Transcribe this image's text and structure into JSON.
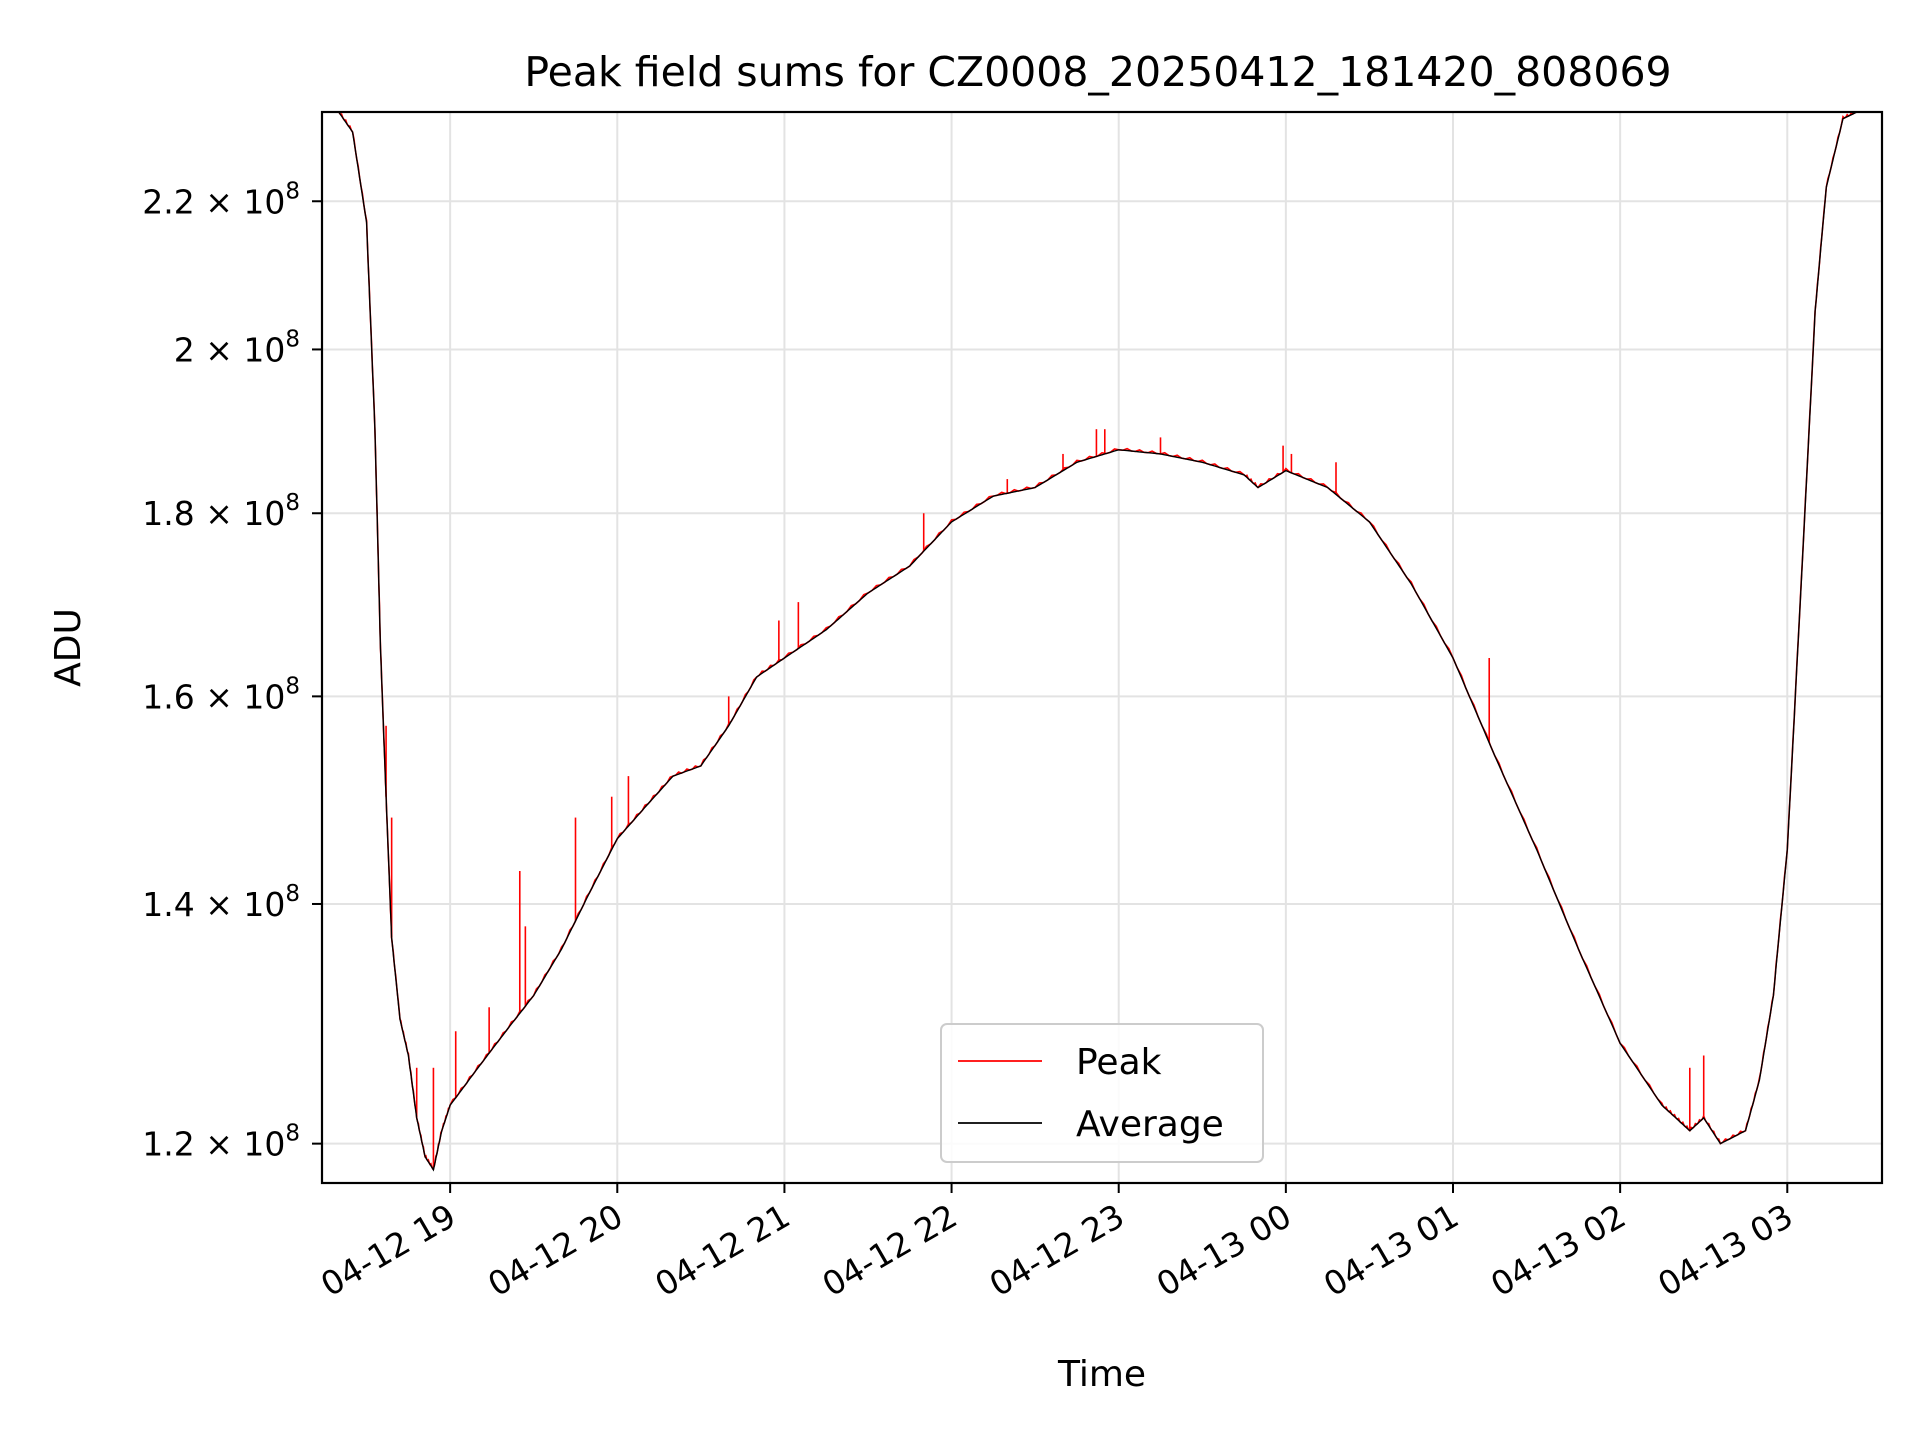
{
  "chart_data": {
    "type": "line",
    "title": "Peak field sums for CZ0008_20250412_181420_808069",
    "xlabel": "Time",
    "ylabel": "ADU",
    "yscale": "log",
    "ylim": [
      117000000,
      233000000
    ],
    "xlim": [
      "2025-04-12 18:14",
      "2025-04-13 03:34"
    ],
    "grid": true,
    "legend_position": "lower center",
    "x_ticks": [
      {
        "value": "2025-04-12 19:00",
        "label": "04-12 19"
      },
      {
        "value": "2025-04-12 20:00",
        "label": "04-12 20"
      },
      {
        "value": "2025-04-12 21:00",
        "label": "04-12 21"
      },
      {
        "value": "2025-04-12 22:00",
        "label": "04-12 22"
      },
      {
        "value": "2025-04-12 23:00",
        "label": "04-12 23"
      },
      {
        "value": "2025-04-13 00:00",
        "label": "04-13 00"
      },
      {
        "value": "2025-04-13 01:00",
        "label": "04-13 01"
      },
      {
        "value": "2025-04-13 02:00",
        "label": "04-13 02"
      },
      {
        "value": "2025-04-13 03:00",
        "label": "04-13 03"
      }
    ],
    "y_ticks": [
      {
        "value": 120000000,
        "mantissa": "1.2",
        "exponent": "8"
      },
      {
        "value": 140000000,
        "mantissa": "1.4",
        "exponent": "8"
      },
      {
        "value": 160000000,
        "mantissa": "1.6",
        "exponent": "8"
      },
      {
        "value": 180000000,
        "mantissa": "1.8",
        "exponent": "8"
      },
      {
        "value": 200000000,
        "mantissa": "2",
        "exponent": "8"
      },
      {
        "value": 220000000,
        "mantissa": "2.2",
        "exponent": "8"
      }
    ],
    "series": [
      {
        "name": "Peak",
        "color": "#ff0000",
        "spikes": [
          {
            "x": "2025-04-12 18:37",
            "y": 157000000
          },
          {
            "x": "2025-04-12 18:39",
            "y": 148000000
          },
          {
            "x": "2025-04-12 18:48",
            "y": 126000000
          },
          {
            "x": "2025-04-12 18:54",
            "y": 126000000
          },
          {
            "x": "2025-04-12 19:02",
            "y": 129000000
          },
          {
            "x": "2025-04-12 19:14",
            "y": 131000000
          },
          {
            "x": "2025-04-12 19:25",
            "y": 143000000
          },
          {
            "x": "2025-04-12 19:27",
            "y": 138000000
          },
          {
            "x": "2025-04-12 19:45",
            "y": 148000000
          },
          {
            "x": "2025-04-12 19:58",
            "y": 150000000
          },
          {
            "x": "2025-04-12 20:04",
            "y": 152000000
          },
          {
            "x": "2025-04-12 20:40",
            "y": 160000000
          },
          {
            "x": "2025-04-12 20:58",
            "y": 168000000
          },
          {
            "x": "2025-04-12 21:05",
            "y": 170000000
          },
          {
            "x": "2025-04-12 21:50",
            "y": 180000000
          },
          {
            "x": "2025-04-12 22:20",
            "y": 184000000
          },
          {
            "x": "2025-04-12 22:40",
            "y": 187000000
          },
          {
            "x": "2025-04-12 22:52",
            "y": 190000000
          },
          {
            "x": "2025-04-12 22:55",
            "y": 190000000
          },
          {
            "x": "2025-04-12 23:15",
            "y": 189000000
          },
          {
            "x": "2025-04-12 23:59",
            "y": 188000000
          },
          {
            "x": "2025-04-13 00:02",
            "y": 187000000
          },
          {
            "x": "2025-04-13 00:18",
            "y": 186000000
          },
          {
            "x": "2025-04-13 01:13",
            "y": 164000000
          },
          {
            "x": "2025-04-13 02:25",
            "y": 126000000
          },
          {
            "x": "2025-04-13 02:30",
            "y": 127000000
          }
        ]
      },
      {
        "name": "Average",
        "color": "#000000"
      }
    ],
    "x": [
      "2025-04-12 18:14",
      "2025-04-12 18:20",
      "2025-04-12 18:25",
      "2025-04-12 18:30",
      "2025-04-12 18:33",
      "2025-04-12 18:35",
      "2025-04-12 18:37",
      "2025-04-12 18:39",
      "2025-04-12 18:42",
      "2025-04-12 18:45",
      "2025-04-12 18:48",
      "2025-04-12 18:51",
      "2025-04-12 18:54",
      "2025-04-12 18:57",
      "2025-04-12 19:00",
      "2025-04-12 19:10",
      "2025-04-12 19:20",
      "2025-04-12 19:30",
      "2025-04-12 19:40",
      "2025-04-12 19:50",
      "2025-04-12 20:00",
      "2025-04-12 20:10",
      "2025-04-12 20:20",
      "2025-04-12 20:30",
      "2025-04-12 20:40",
      "2025-04-12 20:50",
      "2025-04-12 21:00",
      "2025-04-12 21:15",
      "2025-04-12 21:30",
      "2025-04-12 21:45",
      "2025-04-12 22:00",
      "2025-04-12 22:15",
      "2025-04-12 22:30",
      "2025-04-12 22:45",
      "2025-04-12 23:00",
      "2025-04-12 23:15",
      "2025-04-12 23:30",
      "2025-04-12 23:45",
      "2025-04-12 23:50",
      "2025-04-13 00:00",
      "2025-04-13 00:15",
      "2025-04-13 00:30",
      "2025-04-13 00:45",
      "2025-04-13 01:00",
      "2025-04-13 01:15",
      "2025-04-13 01:30",
      "2025-04-13 01:45",
      "2025-04-13 02:00",
      "2025-04-13 02:15",
      "2025-04-13 02:20",
      "2025-04-13 02:25",
      "2025-04-13 02:30",
      "2025-04-13 02:36",
      "2025-04-13 02:45",
      "2025-04-13 02:50",
      "2025-04-13 02:55",
      "2025-04-13 03:00",
      "2025-04-13 03:05",
      "2025-04-13 03:10",
      "2025-04-13 03:14",
      "2025-04-13 03:20",
      "2025-04-13 03:25",
      "2025-04-13 03:34"
    ],
    "y": [
      233000000,
      233000000,
      230000000,
      217000000,
      190000000,
      165000000,
      150000000,
      137000000,
      130000000,
      127000000,
      122000000,
      119000000,
      118000000,
      121000000,
      123000000,
      126000000,
      129000000,
      132000000,
      136000000,
      141000000,
      146000000,
      149000000,
      152000000,
      153000000,
      157000000,
      162000000,
      164000000,
      167000000,
      171000000,
      174000000,
      179000000,
      182000000,
      183000000,
      186000000,
      187500000,
      187000000,
      186000000,
      184500000,
      183000000,
      185000000,
      183000000,
      179000000,
      172000000,
      164000000,
      154000000,
      145000000,
      136000000,
      128000000,
      123000000,
      122000000,
      121000000,
      122000000,
      120000000,
      121000000,
      125000000,
      132000000,
      145000000,
      172000000,
      205000000,
      222000000,
      232000000,
      233000000,
      233000000
    ]
  }
}
